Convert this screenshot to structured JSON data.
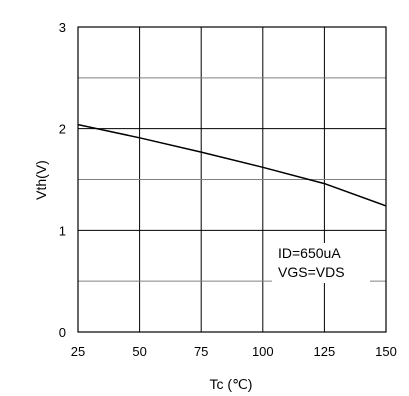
{
  "chart_data": {
    "type": "line",
    "title": "",
    "xlabel": "Tc (℃)",
    "ylabel": "Vth(V)",
    "xlim": [
      25,
      150
    ],
    "ylim": [
      0,
      3
    ],
    "x_ticks": [
      25,
      50,
      75,
      100,
      125,
      150
    ],
    "y_ticks": [
      0,
      1,
      2,
      3
    ],
    "x_tick_labels": [
      "25",
      "50",
      "75",
      "100",
      "125",
      "150"
    ],
    "y_tick_labels": [
      "0",
      "1",
      "2",
      "3"
    ],
    "grid": true,
    "minor_y_grid": [
      0.5,
      1.5,
      2.5
    ],
    "legend": "none",
    "annotations": [
      "ID=650uA",
      "VGS=VDS"
    ],
    "series": [
      {
        "x": [
          25,
          50,
          75,
          100,
          125,
          150
        ],
        "y": [
          2.04,
          1.91,
          1.77,
          1.62,
          1.46,
          1.24
        ]
      }
    ],
    "colors": {
      "line": "#000000",
      "major_grid": "#000000",
      "minor_grid": "#808080"
    }
  }
}
